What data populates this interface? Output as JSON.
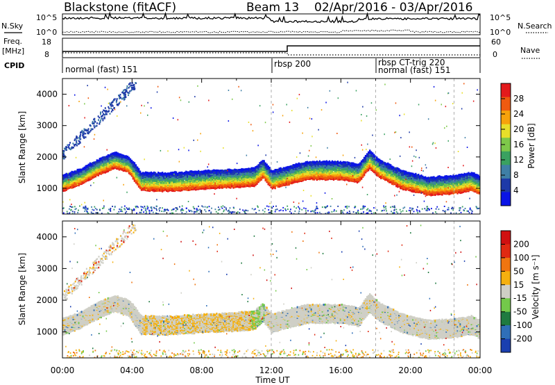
{
  "header": {
    "title": "Blackstone (fitACF)",
    "beam": "Beam 13",
    "date_range": "02/Apr/2016 - 03/Apr/2016"
  },
  "sky_panel": {
    "left_label": "N.Sky",
    "right_label": "N.Search",
    "ticks_left": [
      "10^5",
      "10^0"
    ],
    "ticks_right": [
      "10^5",
      "10^0"
    ]
  },
  "freq_panel": {
    "left_label_1": "Freq.",
    "left_label_2": "[MHz]",
    "right_label": "Nave",
    "ticks_left": [
      "18",
      "8"
    ],
    "ticks_right": [
      "60",
      "0"
    ]
  },
  "cpid_panel": {
    "label": "CPID",
    "segments": [
      {
        "text": "normal (fast) 151",
        "start_hour": 0.0
      },
      {
        "text": "rbsp 200",
        "start_hour": 12.0
      },
      {
        "text": "rbsp CT-trig 220",
        "start_hour": 18.0
      },
      {
        "text": "normal (fast) 151",
        "start_hour": 18.0
      }
    ]
  },
  "x_axis": {
    "label": "Time UT",
    "ticks": [
      "00:00",
      "04:00",
      "08:00",
      "12:00",
      "16:00",
      "20:00",
      "00:00"
    ]
  },
  "chart_data": [
    {
      "type": "heatmap",
      "title": "",
      "xlabel": "Time UT",
      "ylabel": "Slant Range [km]",
      "xlim": [
        0,
        24
      ],
      "ylim": [
        180,
        4500
      ],
      "y_ticks": [
        1000,
        2000,
        3000,
        4000
      ],
      "colorbar": {
        "label": "Power [dB]",
        "ticks": [
          "28",
          "24",
          "20",
          "16",
          "12",
          "8",
          "4"
        ],
        "colors": [
          "#0a14e6",
          "#1e3aa8",
          "#3f7fa6",
          "#3aa160",
          "#7ec84a",
          "#e8df2a",
          "#f7a20c",
          "#ef5a10",
          "#e31a1c"
        ]
      },
      "band_center_km": [
        [
          0.0,
          1150
        ],
        [
          1.0,
          1350
        ],
        [
          2.0,
          1650
        ],
        [
          3.0,
          1880
        ],
        [
          3.8,
          1720
        ],
        [
          4.5,
          1200
        ],
        [
          6.0,
          1180
        ],
        [
          8.0,
          1250
        ],
        [
          10.0,
          1300
        ],
        [
          11.0,
          1350
        ],
        [
          11.5,
          1600
        ],
        [
          12.0,
          1250
        ],
        [
          13.0,
          1400
        ],
        [
          14.0,
          1550
        ],
        [
          16.0,
          1550
        ],
        [
          17.0,
          1450
        ],
        [
          17.6,
          1900
        ],
        [
          18.2,
          1600
        ],
        [
          19.5,
          1250
        ],
        [
          21.0,
          1050
        ],
        [
          22.5,
          1100
        ],
        [
          23.5,
          1200
        ],
        [
          24.0,
          1050
        ]
      ]
    },
    {
      "type": "heatmap",
      "title": "",
      "xlabel": "Time UT",
      "ylabel": "Slant Range [km]",
      "xlim": [
        0,
        24
      ],
      "ylim": [
        180,
        4500
      ],
      "y_ticks": [
        1000,
        2000,
        3000,
        4000
      ],
      "colorbar": {
        "label": "Velocity [m s⁻¹]",
        "ticks": [
          "200",
          "100",
          "50",
          "15",
          "-15",
          "-50",
          "-100",
          "-200"
        ],
        "colors": [
          "#1a3fb0",
          "#2f6fb8",
          "#1f7a40",
          "#73c94a",
          "#cfcfc6",
          "#f5b00f",
          "#f07510",
          "#e02a12",
          "#d01010"
        ]
      }
    }
  ]
}
